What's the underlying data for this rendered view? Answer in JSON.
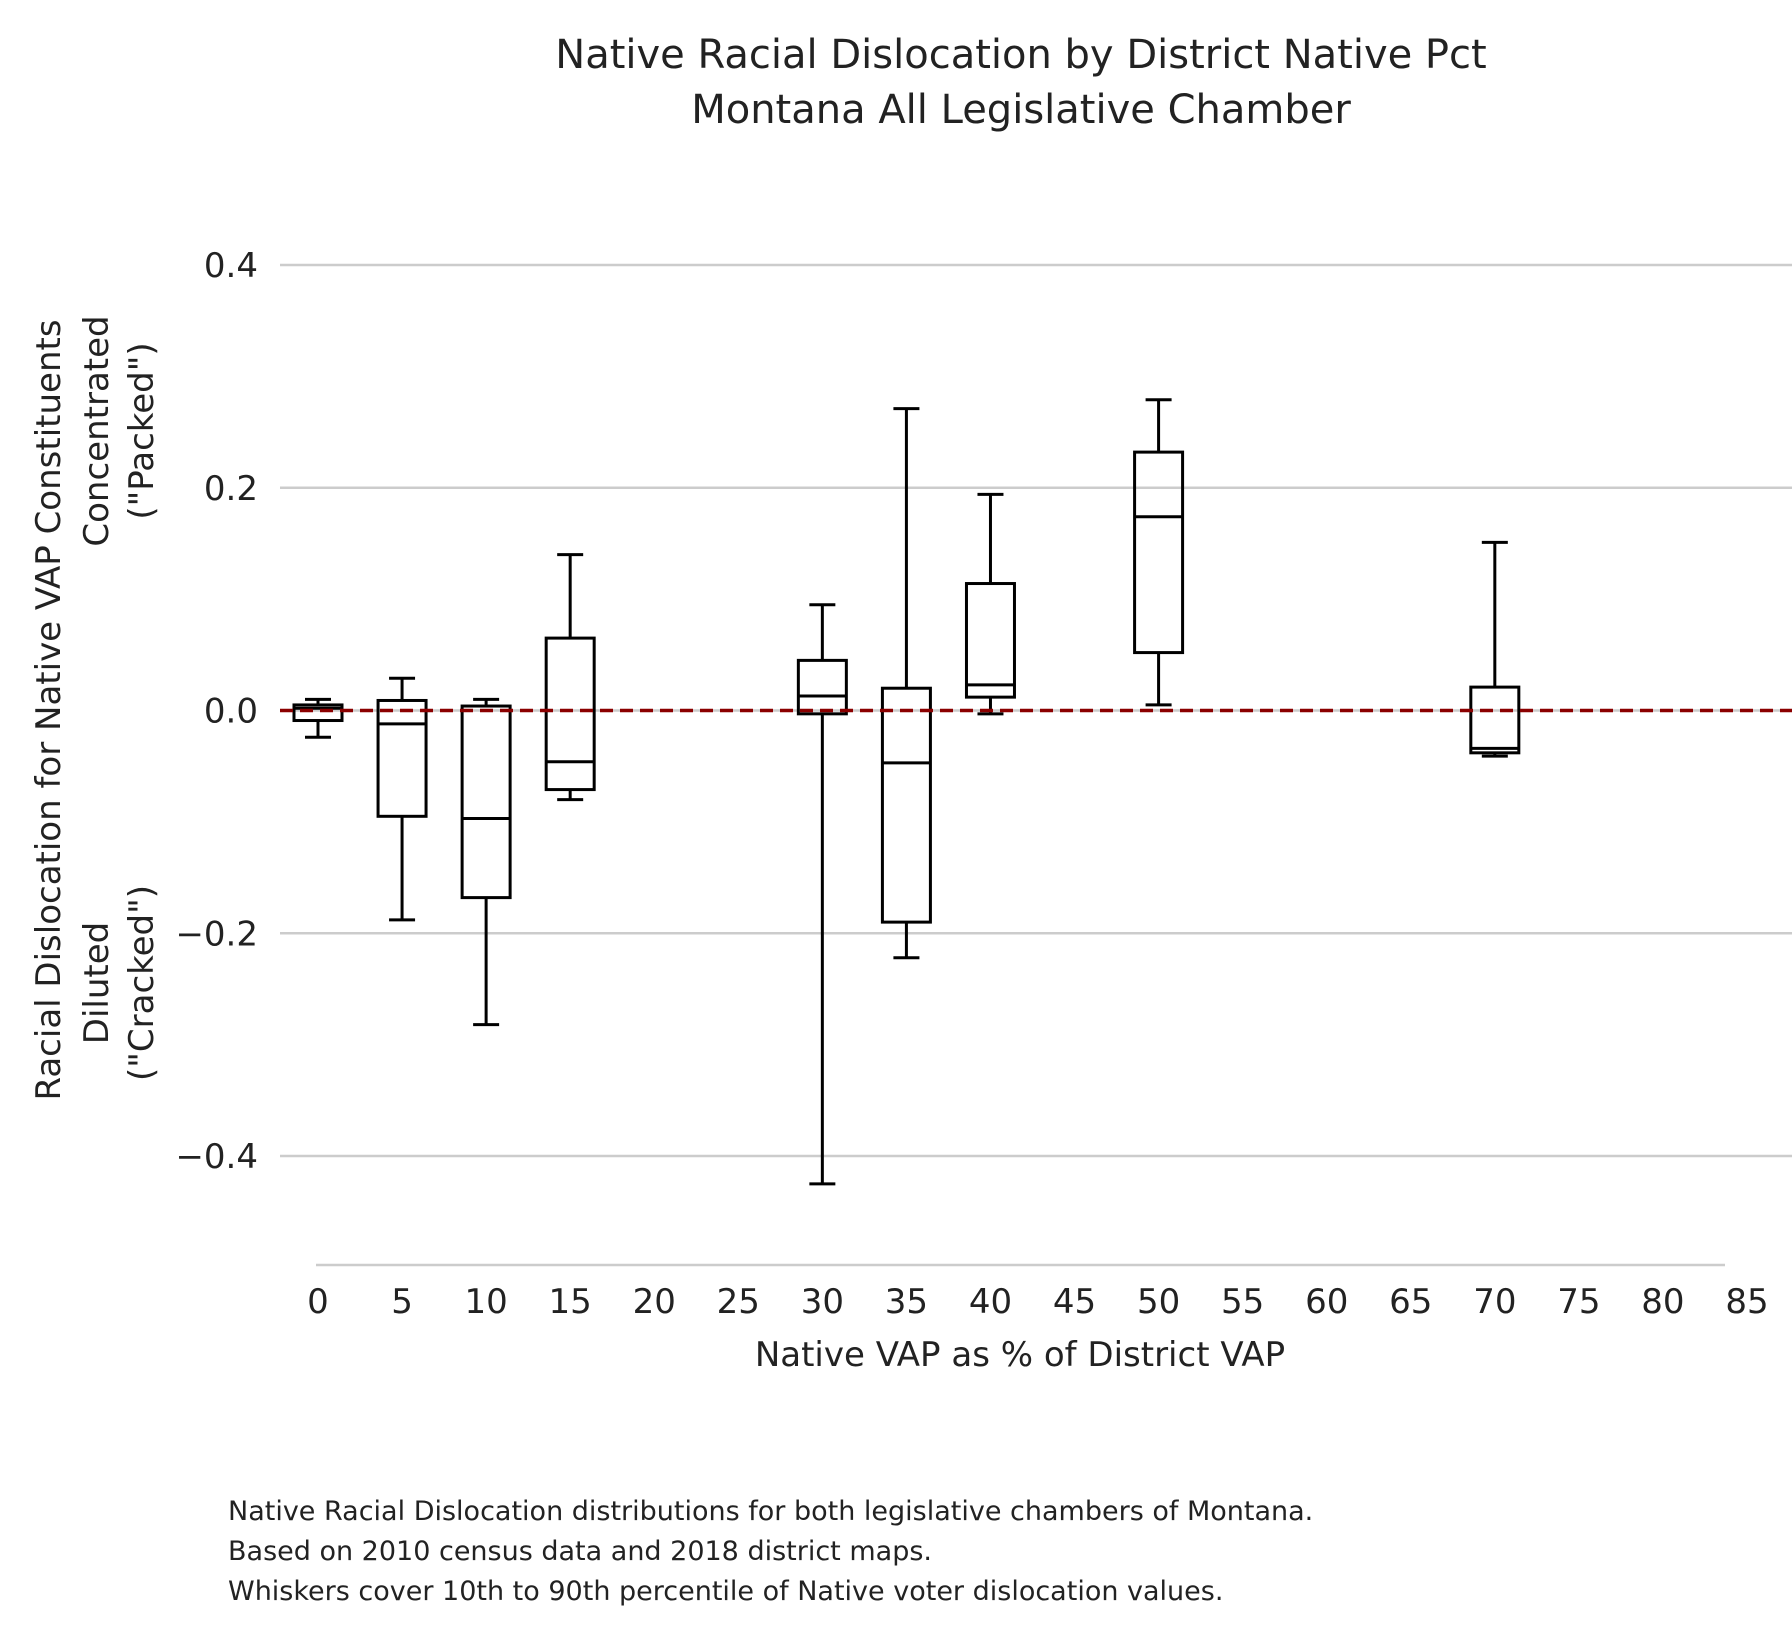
{
  "chart_data": {
    "type": "box",
    "title_lines": [
      "Native Racial Dislocation by District Native Pct",
      "Montana All Legislative Chamber"
    ],
    "xlabel": "Native VAP as % of District VAP",
    "ylabel_lines": [
      "Racial Dislocation for Native VAP Constituents",
      "Concentrated",
      "(\"Packed\")",
      "Diluted",
      "(\"Cracked\")"
    ],
    "x_ticks": [
      0,
      5,
      10,
      15,
      20,
      25,
      30,
      35,
      40,
      45,
      50,
      55,
      60,
      65,
      70,
      75,
      80,
      85
    ],
    "y_ticks": [
      0.4,
      0.2,
      0.0,
      -0.2,
      -0.4
    ],
    "y_tick_labels": [
      "0.4",
      "0.2",
      "0.0",
      "−0.2",
      "−0.4"
    ],
    "xlim": [
      0,
      85
    ],
    "ylim": [
      -0.5,
      0.4
    ],
    "grid": "horizontal",
    "reference_line": {
      "y": 0,
      "style": "dashed",
      "color": "#8b0000"
    },
    "box_color": "#000000",
    "boxes": [
      {
        "x": 0,
        "whisker_low": -0.024,
        "q1": -0.009,
        "median": 0.002,
        "q3": 0.005,
        "whisker_high": 0.01
      },
      {
        "x": 5,
        "whisker_low": -0.188,
        "q1": -0.095,
        "median": -0.012,
        "q3": 0.009,
        "whisker_high": 0.029
      },
      {
        "x": 10,
        "whisker_low": -0.282,
        "q1": -0.168,
        "median": -0.097,
        "q3": 0.004,
        "whisker_high": 0.01
      },
      {
        "x": 15,
        "whisker_low": -0.08,
        "q1": -0.071,
        "median": -0.046,
        "q3": 0.065,
        "whisker_high": 0.14
      },
      {
        "x": 30,
        "whisker_low": -0.425,
        "q1": -0.003,
        "median": 0.013,
        "q3": 0.045,
        "whisker_high": 0.095
      },
      {
        "x": 35,
        "whisker_low": -0.222,
        "q1": -0.19,
        "median": -0.047,
        "q3": 0.02,
        "whisker_high": 0.271
      },
      {
        "x": 40,
        "whisker_low": -0.003,
        "q1": 0.012,
        "median": 0.023,
        "q3": 0.114,
        "whisker_high": 0.194
      },
      {
        "x": 50,
        "whisker_low": 0.005,
        "q1": 0.052,
        "median": 0.174,
        "q3": 0.232,
        "whisker_high": 0.279
      },
      {
        "x": 70,
        "whisker_low": -0.041,
        "q1": -0.038,
        "median": -0.034,
        "q3": 0.021,
        "whisker_high": 0.151
      }
    ]
  },
  "caption_lines": [
    "Native Racial Dislocation distributions for both legislative chambers of Montana.",
    "Based on 2010 census data and 2018 district maps.",
    "Whiskers cover 10th to 90th percentile of Native voter dislocation values."
  ]
}
